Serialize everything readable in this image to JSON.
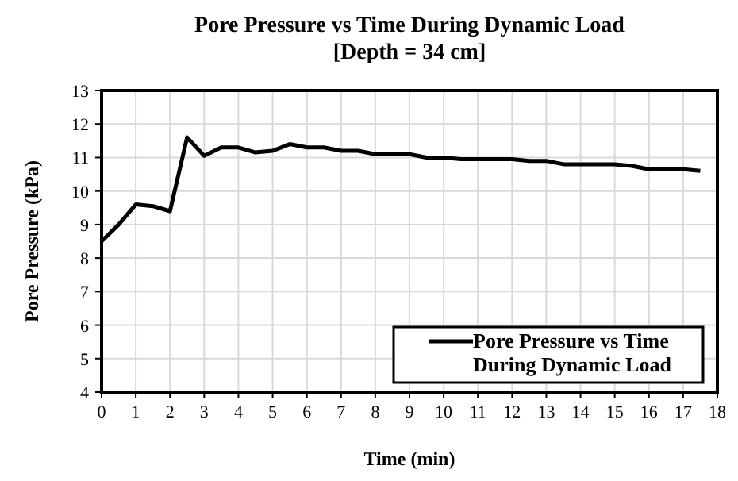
{
  "chart_data": {
    "type": "line",
    "title": "Pore Pressure vs Time During Dynamic Load",
    "subtitle": "[Depth = 34 cm]",
    "xlabel": "Time (min)",
    "ylabel": "Pore Pressure (kPa)",
    "x": [
      0,
      0.5,
      1,
      1.5,
      2,
      2.5,
      3,
      3.5,
      4,
      4.5,
      5,
      5.5,
      6,
      6.5,
      7,
      7.5,
      8,
      8.5,
      9,
      9.5,
      10,
      10.5,
      11,
      12,
      12.5,
      13,
      13.5,
      14,
      15,
      15.5,
      16,
      17,
      17.5
    ],
    "series": [
      {
        "name": "Pore Pressure vs Time During Dynamic Load",
        "color": "#000000",
        "values": [
          8.5,
          9.0,
          9.6,
          9.55,
          9.4,
          11.6,
          11.05,
          11.3,
          11.3,
          11.15,
          11.2,
          11.4,
          11.3,
          11.3,
          11.2,
          11.2,
          11.1,
          11.1,
          11.1,
          11.0,
          11.0,
          10.95,
          10.95,
          10.95,
          10.9,
          10.9,
          10.8,
          10.8,
          10.8,
          10.75,
          10.65,
          10.65,
          10.6
        ]
      }
    ],
    "xlim": [
      0,
      18
    ],
    "xticks": [
      0,
      1,
      2,
      3,
      4,
      5,
      6,
      7,
      8,
      9,
      10,
      11,
      12,
      13,
      14,
      15,
      16,
      17,
      18
    ],
    "ylim": [
      4,
      13
    ],
    "yticks": [
      4,
      5,
      6,
      7,
      8,
      9,
      10,
      11,
      12,
      13
    ],
    "grid": true,
    "legend": "bottom right",
    "marker": "none",
    "line_style": "solid"
  }
}
